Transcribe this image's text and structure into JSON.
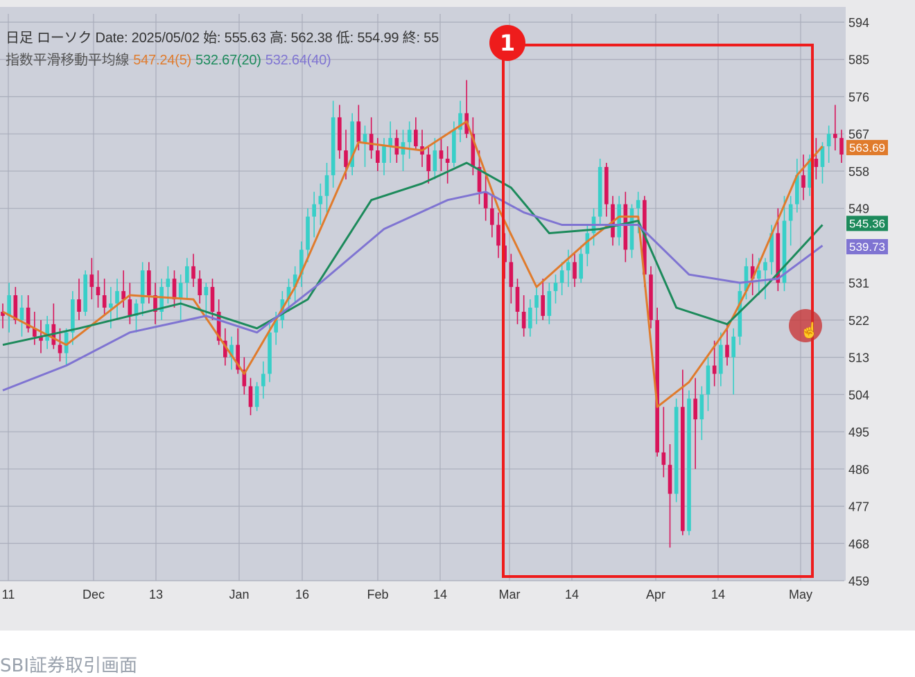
{
  "header": {
    "line1": "日足 ローソク  Date: 2025/05/02 始: 555.63 高: 562.38 低: 554.99 終: 55",
    "ma_label": "指数平滑移動平均線",
    "ema5": "547.24(5)",
    "ema20": "532.67(20)",
    "ema40": "532.64(40)"
  },
  "annotation": {
    "number": "1"
  },
  "caption": "SBI証券取引画面",
  "colors": {
    "background": "#cdd0da",
    "grid": "#a9adbb",
    "up": "#38cfc8",
    "down": "#d8145a",
    "ema5": "#e07b2c",
    "ema20": "#1c8a5b",
    "ema40": "#7f74d2",
    "highlight": "#ee1c1c"
  },
  "chart_data": {
    "type": "candlestick",
    "title": "日足 ローソク",
    "ylim": [
      459,
      594
    ],
    "y_ticks": [
      "594",
      "585",
      "576",
      "567",
      "558",
      "549",
      "531",
      "522",
      "513",
      "504",
      "495",
      "486",
      "477",
      "468",
      "459"
    ],
    "x_ticks": [
      "11",
      "Dec",
      "13",
      "Jan",
      "16",
      "Feb",
      "14",
      "Mar",
      "14",
      "Apr",
      "14",
      "May"
    ],
    "price_tags": [
      {
        "series": "ema5",
        "value": "563.69"
      },
      {
        "series": "ema20",
        "value": "545.36"
      },
      {
        "series": "ema40",
        "value": "539.73"
      }
    ],
    "candles": [
      [
        524,
        526,
        520,
        523
      ],
      [
        523,
        531,
        519,
        528
      ],
      [
        528,
        530,
        521,
        522
      ],
      [
        522,
        528,
        518,
        525
      ],
      [
        525,
        528,
        519,
        520
      ],
      [
        520,
        524,
        516,
        518
      ],
      [
        518,
        522,
        514,
        517
      ],
      [
        517,
        523,
        515,
        521
      ],
      [
        521,
        526,
        515,
        516
      ],
      [
        516,
        520,
        512,
        514
      ],
      [
        514,
        520,
        511,
        519
      ],
      [
        519,
        529,
        516,
        527
      ],
      [
        527,
        532,
        522,
        524
      ],
      [
        524,
        534,
        523,
        533
      ],
      [
        533,
        537,
        527,
        530
      ],
      [
        530,
        534,
        525,
        528
      ],
      [
        528,
        532,
        523,
        525
      ],
      [
        525,
        530,
        520,
        526
      ],
      [
        526,
        532,
        522,
        529
      ],
      [
        529,
        534,
        525,
        527
      ],
      [
        527,
        531,
        521,
        523
      ],
      [
        523,
        527,
        519,
        526
      ],
      [
        526,
        536,
        523,
        534
      ],
      [
        534,
        536,
        526,
        528
      ],
      [
        528,
        531,
        521,
        524
      ],
      [
        524,
        532,
        522,
        530
      ],
      [
        530,
        535,
        526,
        532
      ],
      [
        532,
        534,
        525,
        527
      ],
      [
        527,
        533,
        522,
        531
      ],
      [
        531,
        537,
        527,
        535
      ],
      [
        535,
        538,
        530,
        532
      ],
      [
        532,
        534,
        526,
        528
      ],
      [
        528,
        531,
        522,
        530
      ],
      [
        530,
        532,
        522,
        524
      ],
      [
        524,
        527,
        516,
        517
      ],
      [
        517,
        520,
        511,
        513
      ],
      [
        513,
        518,
        510,
        516
      ],
      [
        516,
        520,
        509,
        510
      ],
      [
        510,
        513,
        504,
        506
      ],
      [
        506,
        508,
        499,
        501
      ],
      [
        501,
        507,
        500,
        506
      ],
      [
        506,
        512,
        503,
        509
      ],
      [
        509,
        521,
        507,
        519
      ],
      [
        519,
        524,
        516,
        522
      ],
      [
        522,
        529,
        520,
        527
      ],
      [
        527,
        532,
        524,
        530
      ],
      [
        530,
        535,
        526,
        533
      ],
      [
        533,
        541,
        530,
        539
      ],
      [
        539,
        549,
        536,
        547
      ],
      [
        547,
        553,
        542,
        550
      ],
      [
        550,
        555,
        545,
        552
      ],
      [
        552,
        560,
        548,
        557
      ],
      [
        557,
        575,
        554,
        571
      ],
      [
        571,
        574,
        561,
        563
      ],
      [
        563,
        568,
        556,
        559
      ],
      [
        559,
        572,
        557,
        570
      ],
      [
        570,
        574,
        563,
        565
      ],
      [
        565,
        569,
        559,
        567
      ],
      [
        567,
        571,
        561,
        563
      ],
      [
        563,
        566,
        558,
        560
      ],
      [
        560,
        566,
        557,
        564
      ],
      [
        564,
        570,
        560,
        566
      ],
      [
        566,
        568,
        560,
        562
      ],
      [
        562,
        568,
        558,
        565
      ],
      [
        565,
        570,
        561,
        568
      ],
      [
        568,
        571,
        563,
        564
      ],
      [
        564,
        568,
        559,
        562
      ],
      [
        562,
        564,
        555,
        558
      ],
      [
        558,
        566,
        556,
        563
      ],
      [
        563,
        566,
        558,
        561
      ],
      [
        561,
        564,
        555,
        560
      ],
      [
        560,
        570,
        559,
        568
      ],
      [
        568,
        575,
        565,
        572
      ],
      [
        572,
        580,
        566,
        567
      ],
      [
        567,
        571,
        557,
        559
      ],
      [
        559,
        563,
        550,
        553
      ],
      [
        553,
        557,
        546,
        549
      ],
      [
        549,
        552,
        542,
        545
      ],
      [
        545,
        548,
        537,
        540
      ],
      [
        540,
        543,
        532,
        536
      ],
      [
        536,
        538,
        526,
        530
      ],
      [
        530,
        532,
        521,
        524
      ],
      [
        524,
        528,
        518,
        520
      ],
      [
        520,
        527,
        518,
        525
      ],
      [
        525,
        530,
        521,
        528
      ],
      [
        528,
        532,
        522,
        523
      ],
      [
        523,
        531,
        521,
        529
      ],
      [
        529,
        533,
        526,
        531
      ],
      [
        531,
        536,
        528,
        534
      ],
      [
        534,
        539,
        530,
        536
      ],
      [
        536,
        538,
        530,
        532
      ],
      [
        532,
        540,
        531,
        538
      ],
      [
        538,
        545,
        535,
        543
      ],
      [
        543,
        549,
        540,
        547
      ],
      [
        547,
        561,
        545,
        559
      ],
      [
        559,
        560,
        547,
        550
      ],
      [
        550,
        552,
        540,
        542
      ],
      [
        542,
        552,
        540,
        550
      ],
      [
        550,
        553,
        536,
        539
      ],
      [
        539,
        550,
        537,
        549
      ],
      [
        549,
        553,
        543,
        551
      ],
      [
        551,
        552,
        530,
        533
      ],
      [
        533,
        535,
        520,
        522
      ],
      [
        522,
        525,
        489,
        490
      ],
      [
        490,
        501,
        484,
        487
      ],
      [
        487,
        492,
        467,
        480
      ],
      [
        480,
        503,
        478,
        501
      ],
      [
        501,
        510,
        470,
        471
      ],
      [
        471,
        505,
        470,
        503
      ],
      [
        503,
        508,
        486,
        498
      ],
      [
        498,
        506,
        493,
        504
      ],
      [
        504,
        513,
        500,
        511
      ],
      [
        511,
        517,
        506,
        509
      ],
      [
        509,
        519,
        506,
        516
      ],
      [
        516,
        521,
        511,
        513
      ],
      [
        513,
        520,
        504,
        518
      ],
      [
        518,
        531,
        516,
        529
      ],
      [
        529,
        537,
        527,
        535
      ],
      [
        535,
        538,
        528,
        532
      ],
      [
        532,
        537,
        528,
        534
      ],
      [
        534,
        537,
        527,
        536
      ],
      [
        536,
        545,
        533,
        543
      ],
      [
        543,
        549,
        529,
        531
      ],
      [
        531,
        552,
        529,
        546
      ],
      [
        546,
        552,
        540,
        550
      ],
      [
        550,
        561,
        548,
        557
      ],
      [
        557,
        562,
        551,
        554
      ],
      [
        554,
        562,
        552,
        561
      ],
      [
        561,
        566,
        556,
        559
      ],
      [
        559,
        565,
        555,
        564
      ],
      [
        564,
        569,
        560,
        567
      ],
      [
        567,
        574,
        563,
        566
      ],
      [
        566,
        568,
        560,
        562
      ]
    ],
    "series": [
      {
        "name": "指数平滑移動平均線 (5)",
        "key": "ema5",
        "points": [
          [
            0,
            524
          ],
          [
            10,
            516
          ],
          [
            20,
            528
          ],
          [
            30,
            527
          ],
          [
            38,
            509
          ],
          [
            46,
            530
          ],
          [
            56,
            565
          ],
          [
            66,
            563
          ],
          [
            73,
            570
          ],
          [
            78,
            549
          ],
          [
            84,
            530
          ],
          [
            92,
            541
          ],
          [
            97,
            547
          ],
          [
            100,
            547
          ],
          [
            103,
            501
          ],
          [
            108,
            507
          ],
          [
            114,
            520
          ],
          [
            118,
            532
          ],
          [
            125,
            557
          ],
          [
            129,
            564
          ]
        ]
      },
      {
        "name": "指数平滑移動平均線 (20)",
        "key": "ema20",
        "points": [
          [
            0,
            516
          ],
          [
            12,
            520
          ],
          [
            28,
            526
          ],
          [
            40,
            520
          ],
          [
            48,
            527
          ],
          [
            58,
            551
          ],
          [
            66,
            555
          ],
          [
            73,
            560
          ],
          [
            80,
            554
          ],
          [
            86,
            543
          ],
          [
            94,
            544
          ],
          [
            100,
            546
          ],
          [
            106,
            525
          ],
          [
            114,
            521
          ],
          [
            120,
            530
          ],
          [
            129,
            545
          ]
        ]
      },
      {
        "name": "指数平滑移動平均線 (40)",
        "key": "ema40",
        "points": [
          [
            0,
            505
          ],
          [
            10,
            511
          ],
          [
            20,
            519
          ],
          [
            32,
            523
          ],
          [
            40,
            519
          ],
          [
            50,
            531
          ],
          [
            60,
            544
          ],
          [
            70,
            551
          ],
          [
            76,
            553
          ],
          [
            82,
            548
          ],
          [
            88,
            545
          ],
          [
            100,
            545
          ],
          [
            108,
            533
          ],
          [
            116,
            531
          ],
          [
            122,
            532
          ],
          [
            129,
            540
          ]
        ]
      }
    ]
  }
}
